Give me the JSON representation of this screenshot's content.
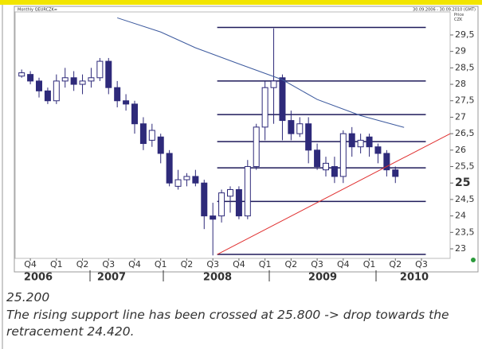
{
  "chart_data": {
    "type": "candlestick",
    "title": "Monthly QEURCZK=",
    "subtitle": "30.09.2006 - 30.09.2010 (GMT)",
    "y_label": "Price CZK",
    "open": [
      28.25,
      28.3,
      28.1,
      27.8,
      27.5,
      28.1,
      28.2,
      28.0,
      28.1,
      28.2,
      28.7,
      27.9,
      27.5,
      27.4,
      26.8,
      26.3,
      26.4,
      25.9,
      24.9,
      25.1,
      25.2,
      25.0,
      24.0,
      24.0,
      24.6,
      24.8,
      24.0,
      25.5,
      26.7,
      27.9,
      28.2,
      26.9,
      26.5,
      26.8,
      26.0,
      25.4,
      25.5,
      25.2,
      26.5,
      26.1,
      26.4,
      26.1,
      25.9,
      25.4
    ],
    "high": [
      28.45,
      28.4,
      28.2,
      27.9,
      28.3,
      28.5,
      28.4,
      28.3,
      28.5,
      28.8,
      28.8,
      28.1,
      27.7,
      27.5,
      27.0,
      26.8,
      26.5,
      26.0,
      25.4,
      25.3,
      25.4,
      25.1,
      24.4,
      24.8,
      24.9,
      24.9,
      25.7,
      26.8,
      28.1,
      29.7,
      28.3,
      27.2,
      27.0,
      27.0,
      26.2,
      25.8,
      25.8,
      26.6,
      26.7,
      26.5,
      26.5,
      26.2,
      26.0,
      25.5
    ],
    "low": [
      28.2,
      28.0,
      27.6,
      27.4,
      27.4,
      27.9,
      27.8,
      27.7,
      27.9,
      28.1,
      27.7,
      27.3,
      27.2,
      26.5,
      26.0,
      26.1,
      25.6,
      24.9,
      24.8,
      24.9,
      24.9,
      23.6,
      22.8,
      23.8,
      24.1,
      23.9,
      23.9,
      25.4,
      26.3,
      26.8,
      26.3,
      26.3,
      26.4,
      25.6,
      25.4,
      25.2,
      25.0,
      25.0,
      25.8,
      25.9,
      25.8,
      25.6,
      25.2,
      25.0
    ],
    "close": [
      28.35,
      28.1,
      27.8,
      27.5,
      28.1,
      28.2,
      28.0,
      28.1,
      28.2,
      28.7,
      27.9,
      27.5,
      27.4,
      26.8,
      26.2,
      26.6,
      25.9,
      25.0,
      25.1,
      25.2,
      25.0,
      24.0,
      23.9,
      24.7,
      24.8,
      24.0,
      25.5,
      26.7,
      27.9,
      28.1,
      26.9,
      26.5,
      26.8,
      26.0,
      25.5,
      25.6,
      25.2,
      26.5,
      26.1,
      26.3,
      26.1,
      25.9,
      25.4,
      25.2
    ],
    "up_color": "#ffffff",
    "down_color": "#2e2a7a",
    "levels": [
      29.73,
      28.1,
      27.08,
      26.26,
      25.46,
      24.44,
      22.83
    ],
    "moving_average": {
      "color": "#3d5a9e",
      "x": [
        11,
        16,
        20,
        25,
        30,
        34,
        39,
        44
      ],
      "values": [
        30.02,
        29.59,
        29.11,
        28.62,
        28.14,
        27.54,
        27.05,
        26.69
      ]
    },
    "trendline": {
      "color": "#e03030",
      "x": [
        22.5,
        49.3
      ],
      "values": [
        22.83,
        26.5
      ]
    },
    "xlim": [
      -0.75,
      49.3
    ],
    "ylim": [
      22.71,
      30.2
    ],
    "yticks": [
      {
        "value": 29.5,
        "label": "29,5"
      },
      29,
      {
        "value": 28.5,
        "label": "28,5"
      },
      28,
      {
        "value": 27.5,
        "label": "27,5"
      },
      27,
      {
        "value": 26.5,
        "label": "26,5"
      },
      26,
      {
        "value": 25.5,
        "label": "25,5"
      },
      25,
      {
        "value": 24.5,
        "label": "24,5"
      },
      24,
      {
        "value": 23.5,
        "label": "23,5"
      },
      23
    ],
    "xticks": [
      {
        "value": 1,
        "label": "Q4"
      },
      {
        "value": 4,
        "label": "Q1"
      },
      {
        "value": 7,
        "label": "Q2"
      },
      {
        "value": 10,
        "label": "Q3"
      },
      {
        "value": 13,
        "label": "Q4"
      },
      {
        "value": 16,
        "label": "Q1"
      },
      {
        "value": 19,
        "label": "Q2"
      },
      {
        "value": 22,
        "label": "Q3"
      },
      {
        "value": 25,
        "label": "Q4"
      },
      {
        "value": 28,
        "label": "Q1"
      },
      {
        "value": 31,
        "label": "Q2"
      },
      {
        "value": 34,
        "label": "Q3"
      },
      {
        "value": 37,
        "label": "Q4"
      },
      {
        "value": 40,
        "label": "Q1"
      },
      {
        "value": 43,
        "label": "Q2"
      },
      {
        "value": 46,
        "label": "Q3"
      }
    ],
    "years": [
      "2006",
      "2007",
      "2008",
      "2009",
      "2010"
    ]
  },
  "footer": {
    "price": "25.200",
    "note": "The rising support line has been crossed at 25.800 -> drop towards the retracement 24.420."
  }
}
